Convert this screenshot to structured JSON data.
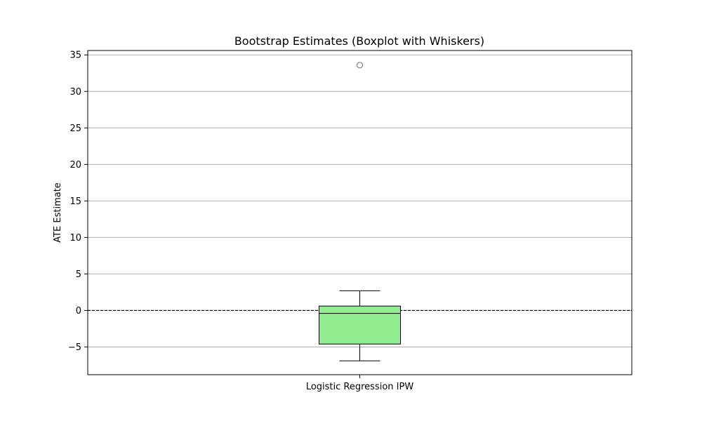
{
  "chart_data": {
    "type": "box",
    "title": "Bootstrap Estimates (Boxplot with Whiskers)",
    "xlabel": "",
    "ylabel": "ATE Estimate",
    "categories": [
      "Logistic Regression IPW"
    ],
    "ylim": [
      -8.8,
      35.6
    ],
    "yticks": [
      -5,
      0,
      5,
      10,
      15,
      20,
      25,
      30,
      35
    ],
    "ytick_labels": [
      "−5",
      "0",
      "5",
      "10",
      "15",
      "20",
      "25",
      "30",
      "35"
    ],
    "grid": "y",
    "reference_line": {
      "y": 0,
      "style": "dashed"
    },
    "boxes": [
      {
        "category": "Logistic Regression IPW",
        "whisker_low": -6.9,
        "q1": -4.6,
        "median": -0.4,
        "q3": 0.6,
        "whisker_high": 2.7,
        "outliers": [
          33.6
        ]
      }
    ],
    "colors": {
      "box_fill": "#90ee90",
      "box_edge": "#000000",
      "grid": "#b0b0b0",
      "outlier_edge": "#808080"
    }
  }
}
